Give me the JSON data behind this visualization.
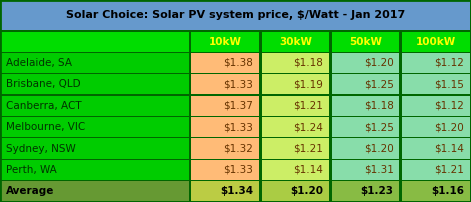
{
  "title": "Solar Choice: Solar PV system price, $/Watt - Jan 2017",
  "col_headers": [
    "",
    "10kW",
    "30kW",
    "50kW",
    "100kW"
  ],
  "rows": [
    [
      "Adelaide, SA",
      "$1.38",
      "$1.18",
      "$1.20",
      "$1.12"
    ],
    [
      "Brisbane, QLD",
      "$1.33",
      "$1.19",
      "$1.25",
      "$1.15"
    ],
    [
      "Canberra, ACT",
      "$1.37",
      "$1.21",
      "$1.18",
      "$1.12"
    ],
    [
      "Melbourne, VIC",
      "$1.33",
      "$1.24",
      "$1.25",
      "$1.20"
    ],
    [
      "Sydney, NSW",
      "$1.32",
      "$1.21",
      "$1.20",
      "$1.14"
    ],
    [
      "Perth, WA",
      "$1.33",
      "$1.14",
      "$1.31",
      "$1.21"
    ]
  ],
  "avg_row": [
    "Average",
    "$1.34",
    "$1.20",
    "$1.23",
    "$1.16"
  ],
  "title_bg": "#6699cc",
  "title_text_color": "#000000",
  "header_bg": "#00dd00",
  "header_text_color": "#ffff00",
  "city_bg": "#00cc00",
  "city_text_color": "#003300",
  "data_col_colors": [
    "#ffbb77",
    "#ccee66",
    "#88ddaa",
    "#88ddaa"
  ],
  "data_text_color": "#663300",
  "avg_city_bg": "#669933",
  "avg_city_text_color": "#000000",
  "avg_data_colors": [
    "#bbcc44",
    "#aacc44",
    "#88bb44",
    "#88bb44"
  ],
  "avg_data_text_color": "#000000",
  "border_color": "#006600",
  "grid_color": "#004400"
}
